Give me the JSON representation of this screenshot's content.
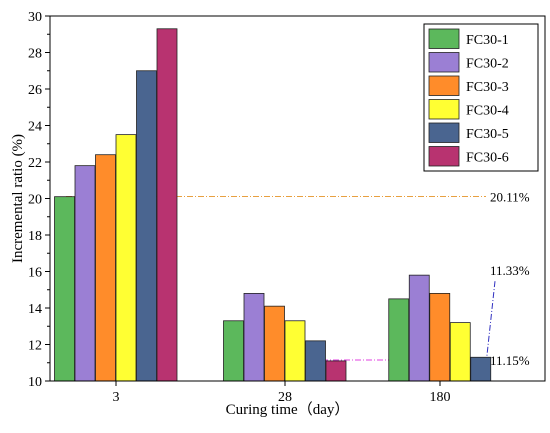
{
  "chart_data": {
    "type": "bar",
    "categories": [
      "3",
      "28",
      "180"
    ],
    "series": [
      {
        "name": "FC30-1",
        "color": "#5cb85c",
        "values": [
          20.1,
          13.3,
          14.5
        ]
      },
      {
        "name": "FC30-2",
        "color": "#9b7fd4",
        "values": [
          21.8,
          14.8,
          15.8
        ]
      },
      {
        "name": "FC30-3",
        "color": "#ff8c2a",
        "values": [
          22.4,
          14.1,
          14.8
        ]
      },
      {
        "name": "FC30-4",
        "color": "#ffff33",
        "values": [
          23.5,
          13.3,
          13.2
        ]
      },
      {
        "name": "FC30-5",
        "color": "#4a6590",
        "values": [
          27.0,
          12.2,
          11.3
        ]
      },
      {
        "name": "FC30-6",
        "color": "#b83370",
        "values": [
          29.3,
          11.1,
          null
        ]
      }
    ],
    "xlabel": "Curing time（day）",
    "ylabel": "Incremental ratio (%)",
    "ylim": [
      10,
      30
    ],
    "yticks": [
      10,
      12,
      14,
      16,
      18,
      20,
      22,
      24,
      26,
      28,
      30
    ],
    "legend_position": "top-right",
    "reference_lines": [
      {
        "label": "20.11%",
        "value": 20.11,
        "color": "#e8a040"
      },
      {
        "label": "11.15%",
        "value": 11.15,
        "color": "#e040e0"
      }
    ],
    "annotations": [
      {
        "label": "11.33%",
        "points_to_category": "180",
        "points_to_series": "FC30-5",
        "color": "#3030c0"
      }
    ]
  }
}
